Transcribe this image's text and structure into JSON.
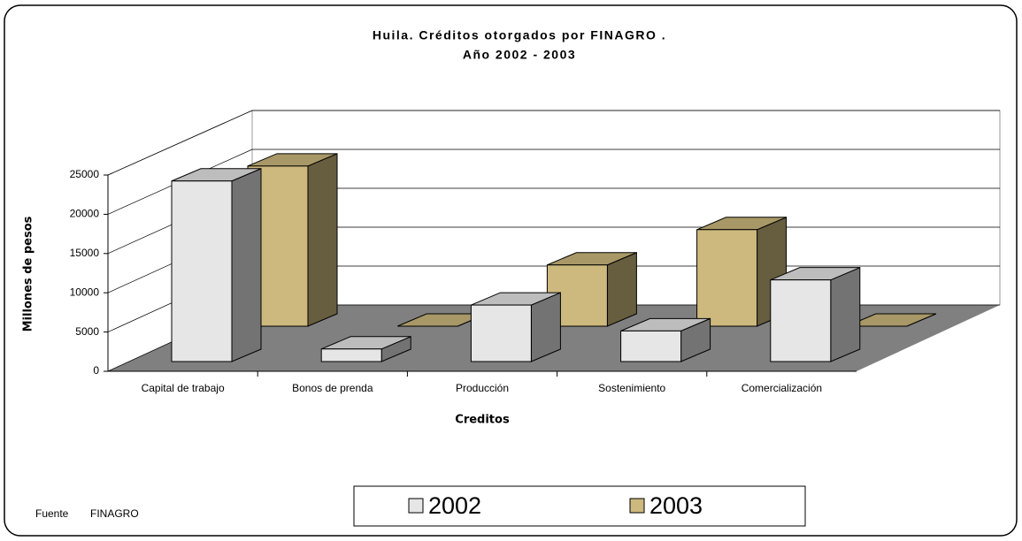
{
  "chart_data": {
    "type": "bar3d",
    "title": "Huila. Créditos otorgados  por FINAGRO .",
    "subtitle": "Año 2002 - 2003",
    "x_label": "Creditos",
    "y_label": "Millones de pesos",
    "source_label": "Fuente",
    "source": "FINAGRO",
    "categories": [
      "Capital de trabajo",
      "Bonos de prenda",
      "Producción",
      "Sostenimiento",
      "Comercialización"
    ],
    "series": [
      {
        "name": "2002",
        "color": "#e6e6e6",
        "values": [
          23000,
          1600,
          7200,
          3900,
          10400
        ]
      },
      {
        "name": "2003",
        "color": "#cdb97e",
        "values": [
          20400,
          0,
          7800,
          12300,
          0
        ]
      }
    ],
    "ylim": [
      0,
      25000
    ],
    "yticks": [
      0,
      5000,
      10000,
      15000,
      20000,
      25000
    ],
    "grid": true
  }
}
